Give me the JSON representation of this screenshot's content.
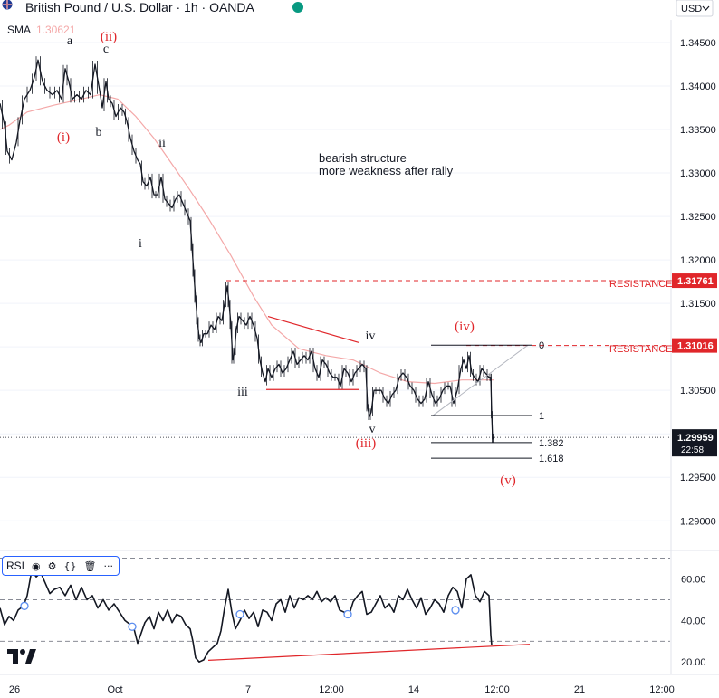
{
  "header": {
    "title": "British Pound / U.S. Dollar · 1h · OANDA",
    "currency_button": "USD",
    "indicator_label": "SMA",
    "indicator_value": "1.30621"
  },
  "colors": {
    "price": "#131722",
    "sma": "#f4a8a8",
    "red": "#e0262a",
    "fib": "#131722",
    "grid": "#f0f3fa",
    "axis_text": "#131722",
    "badge_bg": "#e0262a",
    "last_price_bg": "#131722",
    "rsi_guide": "#787b86",
    "fib_fan": "#b2b5be"
  },
  "annotations": {
    "note_line1": "bearish structure",
    "note_line2": "more weakness after rally",
    "resistance_label_1": "RESISTANCE",
    "resistance_label_2": "RESISTANCE",
    "waves": [
      {
        "text": "a",
        "color": "black"
      },
      {
        "text": "(ii)",
        "color": "red"
      },
      {
        "text": "c",
        "color": "black"
      },
      {
        "text": "(i)",
        "color": "red"
      },
      {
        "text": "b",
        "color": "black"
      },
      {
        "text": "ii",
        "color": "black"
      },
      {
        "text": "i",
        "color": "black"
      },
      {
        "text": "iii",
        "color": "black"
      },
      {
        "text": "iv",
        "color": "black"
      },
      {
        "text": "v",
        "color": "black"
      },
      {
        "text": "(iii)",
        "color": "red"
      },
      {
        "text": "(iv)",
        "color": "red"
      },
      {
        "text": "(v)",
        "color": "red"
      }
    ],
    "fib_levels": [
      "0",
      "1",
      "1.382",
      "1.618"
    ]
  },
  "rsi_toolbar": {
    "label": "RSI",
    "icons": [
      "eye-icon",
      "settings-icon",
      "source-code-icon",
      "trash-icon",
      "more-icon"
    ]
  },
  "chart_data": [
    {
      "type": "line",
      "title": "British Pound / U.S. Dollar · 1h · OANDA",
      "ylim": [
        1.2868,
        1.3476
      ],
      "y_ticks": [
        "1.34500",
        "1.34000",
        "1.33500",
        "1.33000",
        "1.32500",
        "1.32000",
        "1.31500",
        "1.31000",
        "1.30500",
        "1.30000",
        "1.29500",
        "1.29000"
      ],
      "y_tick_values": [
        1.345,
        1.34,
        1.335,
        1.33,
        1.325,
        1.32,
        1.315,
        1.31,
        1.305,
        1.3,
        1.295,
        1.29
      ],
      "x_ticks": [
        "26",
        "Oct",
        "7",
        "12:00",
        "14",
        "12:00",
        "21",
        "12:00"
      ],
      "price_path": {
        "x": [
          0,
          5,
          8,
          13,
          18,
          22,
          27,
          33,
          38,
          42,
          47,
          52,
          58,
          63,
          68,
          72,
          76,
          80,
          85,
          90,
          95,
          100,
          105,
          110,
          113,
          117,
          120,
          124,
          128,
          133,
          137,
          140,
          144,
          148,
          152,
          155,
          158,
          162,
          166,
          170,
          174,
          178,
          182,
          186,
          190,
          194,
          198,
          202,
          206,
          210,
          212,
          214,
          216,
          218,
          220,
          222,
          225,
          229,
          233,
          237,
          241,
          245,
          248,
          251,
          253,
          255,
          257,
          259,
          261,
          264,
          268,
          272,
          276,
          280,
          284,
          287,
          290,
          293,
          296,
          300,
          304,
          308,
          312,
          316,
          320,
          324,
          328,
          332,
          336,
          340,
          344,
          348,
          352,
          356,
          360,
          364,
          368,
          372,
          376,
          380,
          384,
          388,
          392,
          396,
          400,
          404,
          406,
          408,
          410,
          413,
          417,
          421,
          425,
          429,
          433,
          437,
          441,
          445,
          449,
          453,
          457,
          461,
          465,
          469,
          473,
          477,
          481,
          485,
          489,
          493,
          497,
          501,
          505,
          509,
          512,
          515,
          518,
          521,
          524,
          528,
          532,
          536,
          540,
          542,
          543,
          544,
          545
        ],
        "y": [
          1.338,
          1.3355,
          1.3325,
          1.3315,
          1.3335,
          1.336,
          1.3385,
          1.3395,
          1.341,
          1.343,
          1.3405,
          1.3395,
          1.339,
          1.3395,
          1.3385,
          1.342,
          1.3405,
          1.3385,
          1.339,
          1.3385,
          1.3395,
          1.339,
          1.3425,
          1.3395,
          1.3375,
          1.3405,
          1.3385,
          1.338,
          1.3365,
          1.3375,
          1.337,
          1.336,
          1.334,
          1.3325,
          1.3315,
          1.331,
          1.329,
          1.3285,
          1.3295,
          1.3275,
          1.3275,
          1.3295,
          1.327,
          1.3265,
          1.326,
          1.327,
          1.3275,
          1.3265,
          1.3255,
          1.3245,
          1.3215,
          1.3185,
          1.3155,
          1.313,
          1.311,
          1.3105,
          1.3115,
          1.3115,
          1.3125,
          1.312,
          1.3135,
          1.313,
          1.315,
          1.317,
          1.315,
          1.3125,
          1.3085,
          1.3095,
          1.312,
          1.3135,
          1.313,
          1.3125,
          1.3135,
          1.3125,
          1.311,
          1.3085,
          1.307,
          1.306,
          1.3075,
          1.3065,
          1.3075,
          1.308,
          1.307,
          1.3075,
          1.3085,
          1.3095,
          1.308,
          1.3085,
          1.309,
          1.3085,
          1.3095,
          1.3075,
          1.3065,
          1.3085,
          1.308,
          1.307,
          1.3065,
          1.3065,
          1.3055,
          1.3075,
          1.307,
          1.306,
          1.307,
          1.3075,
          1.308,
          1.3075,
          1.303,
          1.302,
          1.3025,
          1.305,
          1.305,
          1.305,
          1.304,
          1.3035,
          1.3045,
          1.305,
          1.3065,
          1.307,
          1.3065,
          1.3055,
          1.305,
          1.304,
          1.3035,
          1.304,
          1.306,
          1.3045,
          1.3035,
          1.304,
          1.305,
          1.3055,
          1.3055,
          1.3035,
          1.305,
          1.3075,
          1.3085,
          1.3075,
          1.309,
          1.307,
          1.3065,
          1.306,
          1.3075,
          1.307,
          1.3065,
          1.3065,
          1.3022,
          1.2994,
          1.2996
        ]
      },
      "sma_path": {
        "x": [
          0,
          10,
          30,
          60,
          90,
          110,
          130,
          150,
          170,
          190,
          210,
          230,
          255,
          280,
          300,
          330,
          360,
          390,
          420,
          450,
          480,
          510,
          545
        ],
        "y": [
          1.335,
          1.3355,
          1.337,
          1.3378,
          1.3385,
          1.339,
          1.3385,
          1.3365,
          1.334,
          1.331,
          1.328,
          1.3248,
          1.3205,
          1.3158,
          1.3125,
          1.3098,
          1.309,
          1.3085,
          1.307,
          1.306,
          1.3058,
          1.3062,
          1.3062
        ]
      },
      "resistance_levels": [
        1.31761,
        1.31016
      ],
      "resistance_badges": [
        "1.31761",
        "1.31016"
      ],
      "last_price": "1.29959",
      "last_price_value": 1.29959,
      "countdown": "22:58",
      "fib_values": [
        1.3102,
        1.3021,
        1.299,
        1.2972
      ],
      "channel_lines": [
        {
          "x": [
            296,
            396
          ],
          "y": [
            1.3135,
            1.3105
          ]
        },
        {
          "x": [
            294,
            396
          ],
          "y": [
            1.3051,
            1.3051
          ]
        }
      ],
      "fan_line": {
        "x": [
          478,
          583
        ],
        "y": [
          1.3021,
          1.3102
        ]
      }
    },
    {
      "type": "line",
      "title": "RSI",
      "ylim": [
        14,
        72
      ],
      "y_ticks": [
        "60.00",
        "40.00",
        "20.00"
      ],
      "y_tick_values": [
        60,
        40,
        20
      ],
      "guides": [
        70,
        50,
        30
      ],
      "rsi_path": {
        "x": [
          0,
          5,
          10,
          15,
          20,
          26,
          30,
          35,
          40,
          45,
          50,
          55,
          60,
          66,
          72,
          78,
          84,
          90,
          96,
          102,
          108,
          114,
          120,
          126,
          132,
          138,
          144,
          148,
          152,
          156,
          160,
          165,
          170,
          175,
          180,
          185,
          190,
          195,
          200,
          205,
          210,
          213,
          216,
          220,
          225,
          230,
          235,
          240,
          244,
          248,
          252,
          256,
          260,
          265,
          270,
          275,
          280,
          285,
          290,
          295,
          300,
          305,
          310,
          315,
          320,
          325,
          330,
          335,
          340,
          345,
          350,
          355,
          360,
          365,
          370,
          375,
          380,
          385,
          390,
          395,
          400,
          405,
          410,
          415,
          420,
          425,
          430,
          435,
          440,
          445,
          450,
          455,
          460,
          465,
          470,
          475,
          480,
          485,
          490,
          495,
          500,
          505,
          510,
          515,
          520,
          525,
          530,
          535,
          540,
          542,
          543
        ],
        "y": [
          46,
          38,
          42,
          40,
          45,
          47,
          52,
          64,
          61,
          63,
          58,
          53,
          55,
          56,
          52,
          57,
          50,
          56,
          50,
          52,
          46,
          50,
          45,
          48,
          44,
          40,
          38,
          36,
          29,
          34,
          39,
          42,
          36,
          44,
          40,
          45,
          39,
          43,
          42,
          38,
          36,
          30,
          22,
          20,
          21,
          25,
          27,
          29,
          35,
          46,
          55,
          44,
          36,
          40,
          45,
          41,
          44,
          37,
          45,
          44,
          40,
          48,
          50,
          44,
          52,
          46,
          51,
          50,
          52,
          50,
          54,
          49,
          51,
          49,
          52,
          45,
          44,
          42,
          49,
          52,
          54,
          43,
          44,
          48,
          52,
          46,
          48,
          44,
          52,
          50,
          55,
          50,
          46,
          51,
          43,
          46,
          50,
          48,
          44,
          52,
          56,
          54,
          46,
          60,
          62,
          52,
          49,
          54,
          52,
          33,
          28
        ]
      },
      "circles": [
        {
          "x": 27,
          "y": 47
        },
        {
          "x": 146,
          "y": 37
        },
        {
          "x": 265,
          "y": 43
        },
        {
          "x": 384,
          "y": 43
        },
        {
          "x": 503,
          "y": 45
        }
      ],
      "trendline": {
        "x": [
          230,
          585
        ],
        "y": [
          20.8,
          28.5
        ]
      }
    }
  ]
}
